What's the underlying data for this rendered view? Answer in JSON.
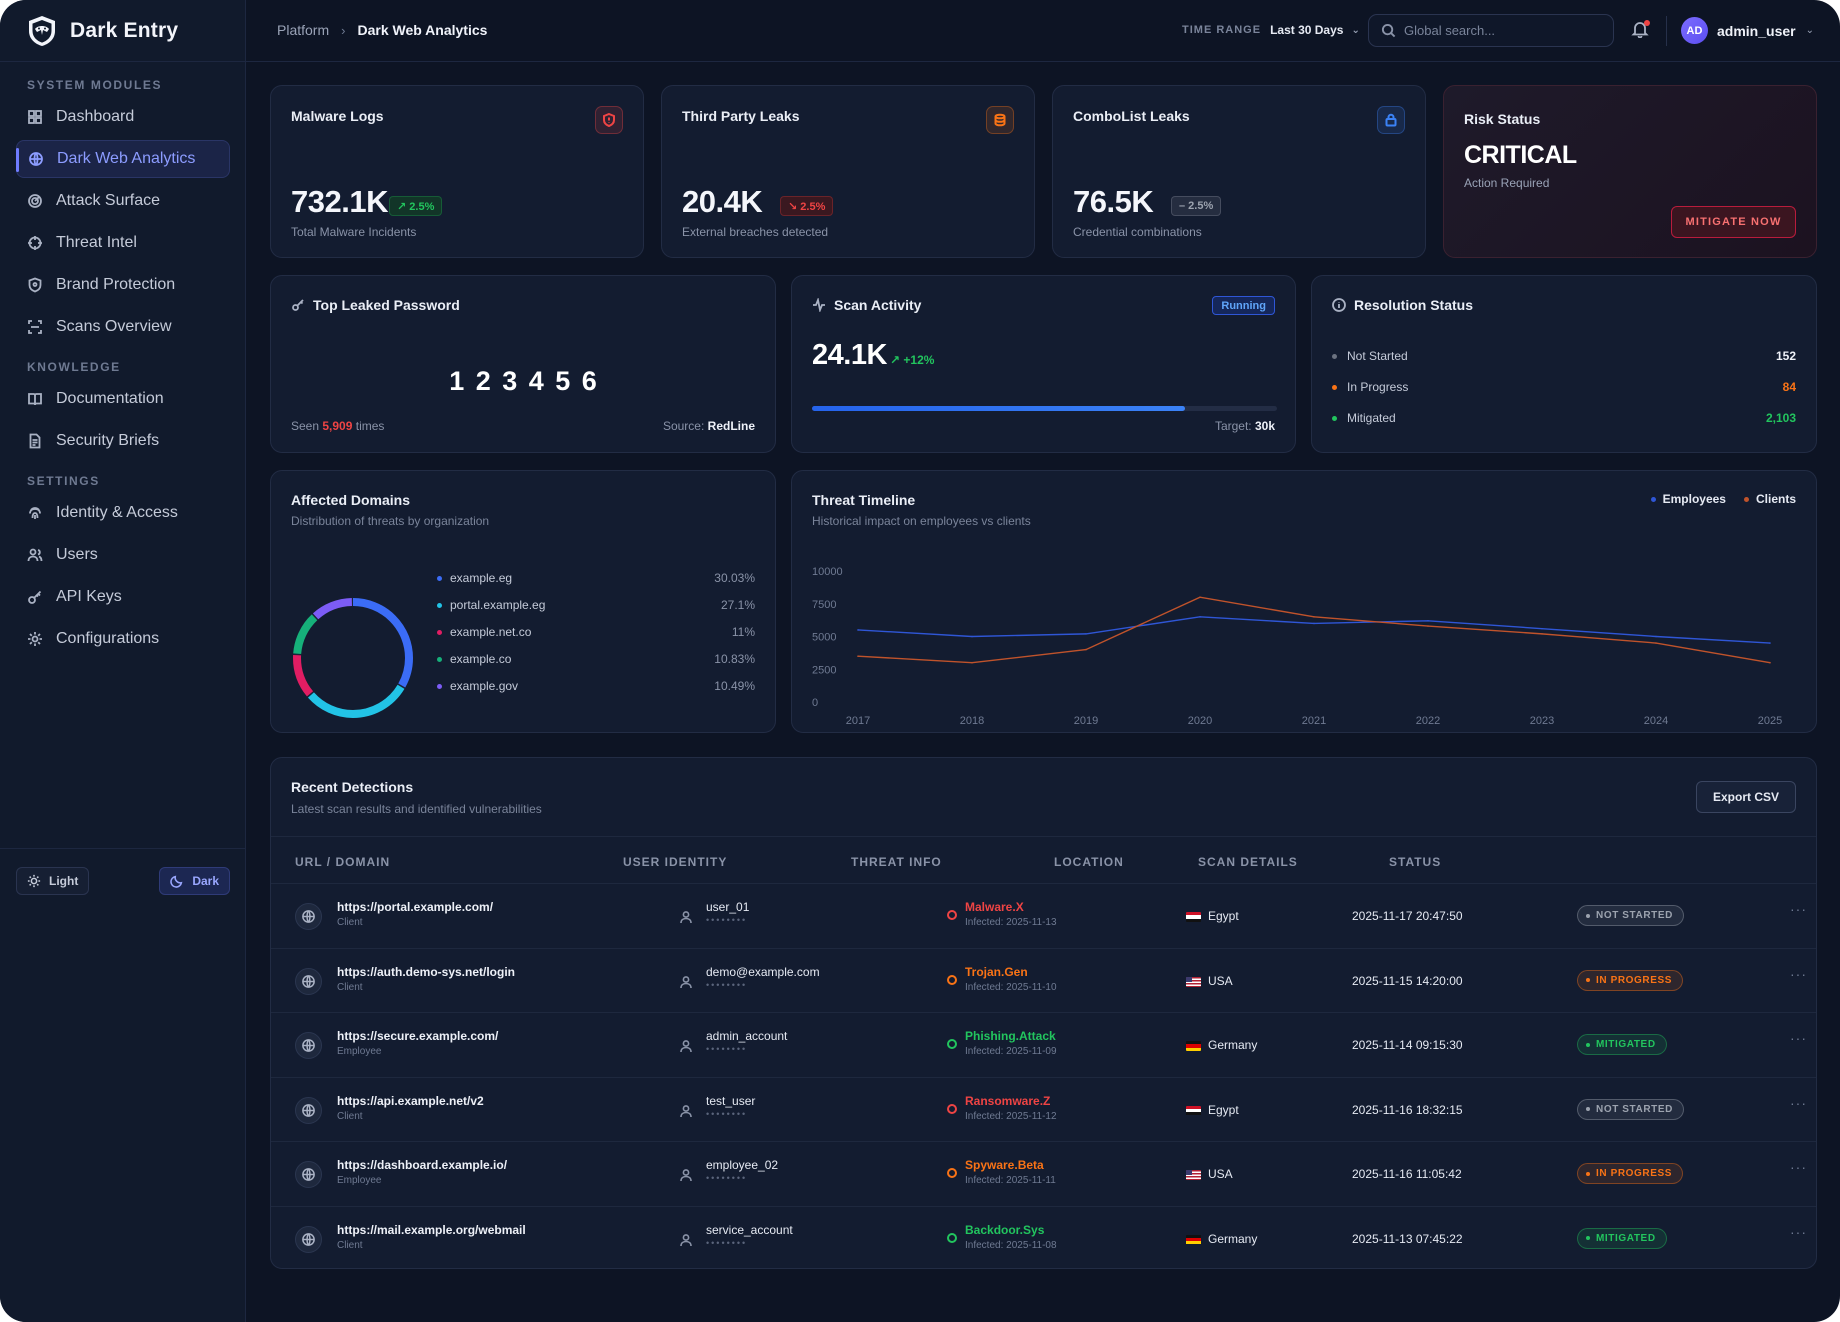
{
  "app": {
    "name": "Dark Entry"
  },
  "sidebar": {
    "sections": [
      {
        "label": "SYSTEM MODULES",
        "items": [
          {
            "label": "Dashboard",
            "icon": "grid-icon"
          },
          {
            "label": "Dark Web Analytics",
            "icon": "globe-icon",
            "active": true
          },
          {
            "label": "Attack Surface",
            "icon": "target-icon"
          },
          {
            "label": "Threat Intel",
            "icon": "crosshair-icon"
          },
          {
            "label": "Brand Protection",
            "icon": "shield-icon"
          },
          {
            "label": "Scans Overview",
            "icon": "scan-icon"
          }
        ]
      },
      {
        "label": "KNOWLEDGE",
        "items": [
          {
            "label": "Documentation",
            "icon": "book-icon"
          },
          {
            "label": "Security Briefs",
            "icon": "file-icon"
          }
        ]
      },
      {
        "label": "SETTINGS",
        "items": [
          {
            "label": "Identity & Access",
            "icon": "fingerprint-icon"
          },
          {
            "label": "Users",
            "icon": "users-icon"
          },
          {
            "label": "API Keys",
            "icon": "key-icon"
          },
          {
            "label": "Configurations",
            "icon": "gear-icon"
          }
        ]
      }
    ],
    "theme": {
      "light": "Light",
      "dark": "Dark"
    }
  },
  "topbar": {
    "breadcrumb": [
      "Platform",
      "Dark Web Analytics"
    ],
    "time_range_label": "TIME RANGE",
    "time_range_value": "Last 30 Days",
    "search_placeholder": "Global search...",
    "avatar": "AD",
    "username": "admin_user"
  },
  "kpis": [
    {
      "title": "Malware Logs",
      "value": "732.1K",
      "badge": "↗ 2.5%",
      "trend": "up",
      "sub": "Total Malware Incidents",
      "icon": "shield-alert-icon",
      "color": "#ef4444"
    },
    {
      "title": "Third Party Leaks",
      "value": "20.4K",
      "badge": "↘ 2.5%",
      "trend": "down",
      "sub": "External breaches detected",
      "icon": "database-icon",
      "color": "#f97316"
    },
    {
      "title": "ComboList Leaks",
      "value": "76.5K",
      "badge": "– 2.5%",
      "trend": "flat",
      "sub": "Credential combinations",
      "icon": "lock-icon",
      "color": "#3b82f6"
    }
  ],
  "risk": {
    "title": "Risk Status",
    "value": "CRITICAL",
    "sub": "Action Required",
    "button": "MITIGATE NOW"
  },
  "top_password": {
    "title": "Top Leaked Password",
    "password": "1 2 3 4 5 6",
    "seen_prefix": "Seen",
    "seen_count": "5,909",
    "seen_suffix": "times",
    "source_label": "Source:",
    "source": "RedLine"
  },
  "scan_activity": {
    "title": "Scan Activity",
    "status": "Running",
    "value": "24.1K",
    "delta": "+12%",
    "progress": 0.803,
    "target_label": "Target:",
    "target": "30k"
  },
  "resolution": {
    "title": "Resolution Status",
    "items": [
      {
        "label": "Not Started",
        "value": "152",
        "color": "#6b7280"
      },
      {
        "label": "In Progress",
        "value": "84",
        "color": "#f97316"
      },
      {
        "label": "Mitigated",
        "value": "2,103",
        "color": "#22c55e"
      }
    ]
  },
  "domains": {
    "title": "Affected Domains",
    "subtitle": "Distribution of threats by organization",
    "items": [
      {
        "label": "example.eg",
        "pct": "30.03%",
        "value": 30.03,
        "color": "#3b6cf6"
      },
      {
        "label": "portal.example.eg",
        "pct": "27.1%",
        "value": 27.1,
        "color": "#22c3e6"
      },
      {
        "label": "example.net.co",
        "pct": "11%",
        "value": 11,
        "color": "#e11d63"
      },
      {
        "label": "example.co",
        "pct": "10.83%",
        "value": 10.83,
        "color": "#16b07a"
      },
      {
        "label": "example.gov",
        "pct": "10.49%",
        "value": 10.49,
        "color": "#7c5cf6"
      }
    ]
  },
  "chart_data": {
    "type": "line",
    "title": "Threat Timeline",
    "subtitle": "Historical impact on employees vs clients",
    "x": [
      "2017",
      "2018",
      "2019",
      "2020",
      "2021",
      "2022",
      "2023",
      "2024",
      "2025"
    ],
    "ylim": [
      0,
      10000
    ],
    "yticks": [
      "10000",
      "7500",
      "5000",
      "2500",
      "0"
    ],
    "legend_position": "top-right",
    "series": [
      {
        "name": "Employees",
        "color": "#2f56d6",
        "values": [
          5500,
          5000,
          5200,
          6500,
          6000,
          6200,
          5600,
          5000,
          4500
        ]
      },
      {
        "name": "Clients",
        "color": "#c0532b",
        "values": [
          3500,
          3000,
          4000,
          8000,
          6500,
          5800,
          5200,
          4500,
          3000
        ]
      }
    ]
  },
  "detections": {
    "title": "Recent Detections",
    "subtitle": "Latest scan results and identified vulnerabilities",
    "export": "Export CSV",
    "columns": [
      "URL / DOMAIN",
      "USER IDENTITY",
      "THREAT INFO",
      "LOCATION",
      "SCAN DETAILS",
      "STATUS"
    ],
    "rows": [
      {
        "url": "https://portal.example.com/",
        "type": "Client",
        "user": "user_01",
        "mask": "••••••••",
        "threat": "Malware.X",
        "infected": "Infected: 2025-11-13",
        "threat_color": "#ef4444",
        "country": "Egypt",
        "flag": [
          "#ce1126",
          "#ffffff",
          "#111111"
        ],
        "scan": "2025-11-17 20:47:50",
        "status": "NOT STARTED",
        "status_color": "#9ca3af"
      },
      {
        "url": "https://auth.demo-sys.net/login",
        "type": "Client",
        "user": "demo@example.com",
        "mask": "••••••••",
        "threat": "Trojan.Gen",
        "infected": "Infected: 2025-11-10",
        "threat_color": "#f97316",
        "country": "USA",
        "flag": [
          "#b22234",
          "#ffffff",
          "#3c3b6e"
        ],
        "scan": "2025-11-15 14:20:00",
        "status": "IN PROGRESS",
        "status_color": "#f97316"
      },
      {
        "url": "https://secure.example.com/",
        "type": "Employee",
        "user": "admin_account",
        "mask": "••••••••",
        "threat": "Phishing.Attack",
        "infected": "Infected: 2025-11-09",
        "threat_color": "#22c55e",
        "country": "Germany",
        "flag": [
          "#111111",
          "#dd0000",
          "#ffce00"
        ],
        "scan": "2025-11-14 09:15:30",
        "status": "MITIGATED",
        "status_color": "#22c55e"
      },
      {
        "url": "https://api.example.net/v2",
        "type": "Client",
        "user": "test_user",
        "mask": "••••••••",
        "threat": "Ransomware.Z",
        "infected": "Infected: 2025-11-12",
        "threat_color": "#ef4444",
        "country": "Egypt",
        "flag": [
          "#ce1126",
          "#ffffff",
          "#111111"
        ],
        "scan": "2025-11-16 18:32:15",
        "status": "NOT STARTED",
        "status_color": "#9ca3af"
      },
      {
        "url": "https://dashboard.example.io/",
        "type": "Employee",
        "user": "employee_02",
        "mask": "••••••••",
        "threat": "Spyware.Beta",
        "infected": "Infected: 2025-11-11",
        "threat_color": "#f97316",
        "country": "USA",
        "flag": [
          "#b22234",
          "#ffffff",
          "#3c3b6e"
        ],
        "scan": "2025-11-16 11:05:42",
        "status": "IN PROGRESS",
        "status_color": "#f97316"
      },
      {
        "url": "https://mail.example.org/webmail",
        "type": "Client",
        "user": "service_account",
        "mask": "••••••••",
        "threat": "Backdoor.Sys",
        "infected": "Infected: 2025-11-08",
        "threat_color": "#22c55e",
        "country": "Germany",
        "flag": [
          "#111111",
          "#dd0000",
          "#ffce00"
        ],
        "scan": "2025-11-13 07:45:22",
        "status": "MITIGATED",
        "status_color": "#22c55e"
      }
    ]
  }
}
